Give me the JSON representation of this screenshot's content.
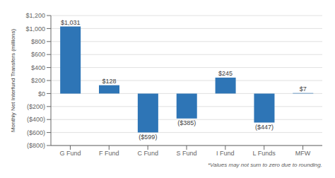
{
  "chart_data": {
    "type": "bar",
    "categories": [
      "G Fund",
      "F Fund",
      "C Fund",
      "S Fund",
      "I Fund",
      "L Funds",
      "MFW"
    ],
    "values": [
      1031,
      128,
      -599,
      -385,
      245,
      -447,
      7
    ],
    "value_labels": [
      "$1,031",
      "$128",
      "($599)",
      "($385)",
      "$245",
      "($447)",
      "$7"
    ],
    "data_labels": true,
    "color": "#2e75b6",
    "ylabel": "Monthly Net Interfund Transfers (millions)",
    "ylim": [
      -800,
      1200
    ],
    "yticks": [
      {
        "value": -800,
        "label": "($800)"
      },
      {
        "value": -600,
        "label": "($600)"
      },
      {
        "value": -400,
        "label": "($400)"
      },
      {
        "value": -200,
        "label": "($200)"
      },
      {
        "value": 0,
        "label": "$0"
      },
      {
        "value": 200,
        "label": "$200"
      },
      {
        "value": 400,
        "label": "$400"
      },
      {
        "value": 600,
        "label": "$600"
      },
      {
        "value": 800,
        "label": "$800"
      },
      {
        "value": 1000,
        "label": "$1,000"
      },
      {
        "value": 1200,
        "label": "$1,200"
      }
    ],
    "grid": true,
    "annotations": [
      "*Values may not sum to zero due to rounding."
    ]
  }
}
